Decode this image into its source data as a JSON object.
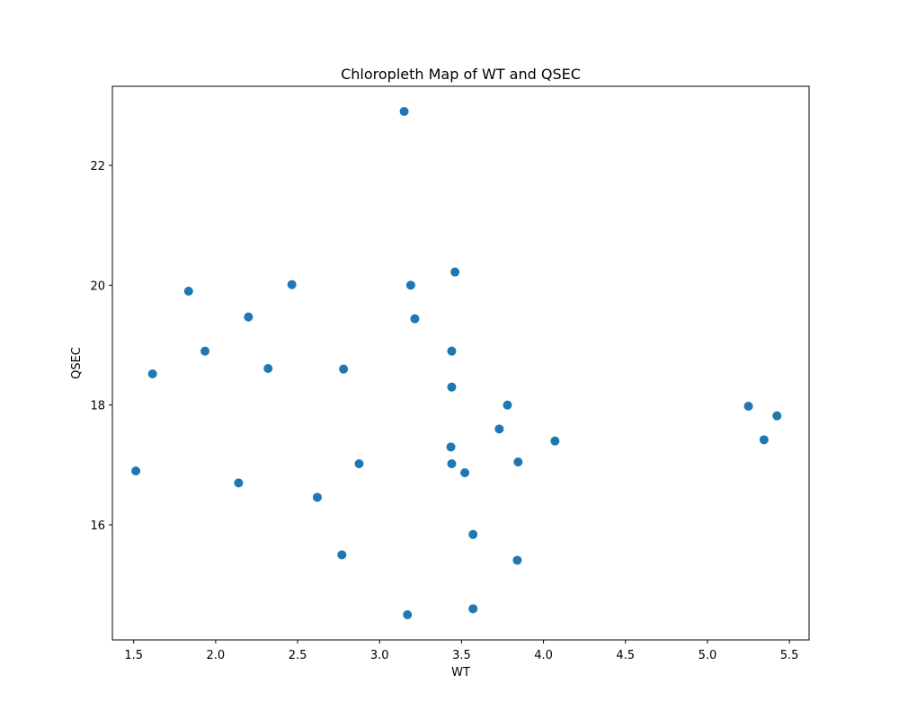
{
  "chart_data": {
    "type": "scatter",
    "title": "Chloropleth Map of WT and QSEC",
    "xlabel": "WT",
    "ylabel": "QSEC",
    "xlim": [
      1.37,
      5.62
    ],
    "ylim": [
      14.08,
      23.32
    ],
    "xticks": [
      1.5,
      2.0,
      2.5,
      3.0,
      3.5,
      4.0,
      4.5,
      5.0,
      5.5
    ],
    "xtick_labels": [
      "1.5",
      "2.0",
      "2.5",
      "3.0",
      "3.5",
      "4.0",
      "4.5",
      "5.0",
      "5.5"
    ],
    "yticks": [
      16,
      18,
      20,
      22
    ],
    "ytick_labels": [
      "16",
      "18",
      "20",
      "22"
    ],
    "grid": false,
    "marker_color": "#1f77b4",
    "x": [
      2.62,
      2.875,
      2.32,
      3.215,
      3.44,
      3.46,
      3.57,
      3.19,
      3.15,
      3.44,
      3.44,
      4.07,
      3.73,
      3.78,
      5.25,
      5.424,
      5.345,
      2.2,
      1.615,
      1.835,
      2.465,
      3.52,
      3.435,
      3.84,
      3.845,
      1.935,
      2.14,
      1.513,
      3.17,
      2.77,
      3.57,
      2.78
    ],
    "y": [
      16.46,
      17.02,
      18.61,
      19.44,
      17.02,
      20.22,
      15.84,
      20.0,
      22.9,
      18.3,
      18.9,
      17.4,
      17.6,
      18.0,
      17.98,
      17.82,
      17.42,
      19.47,
      18.52,
      19.9,
      20.01,
      16.87,
      17.3,
      15.41,
      17.05,
      18.9,
      16.7,
      16.9,
      14.5,
      15.5,
      14.6,
      18.6
    ]
  }
}
